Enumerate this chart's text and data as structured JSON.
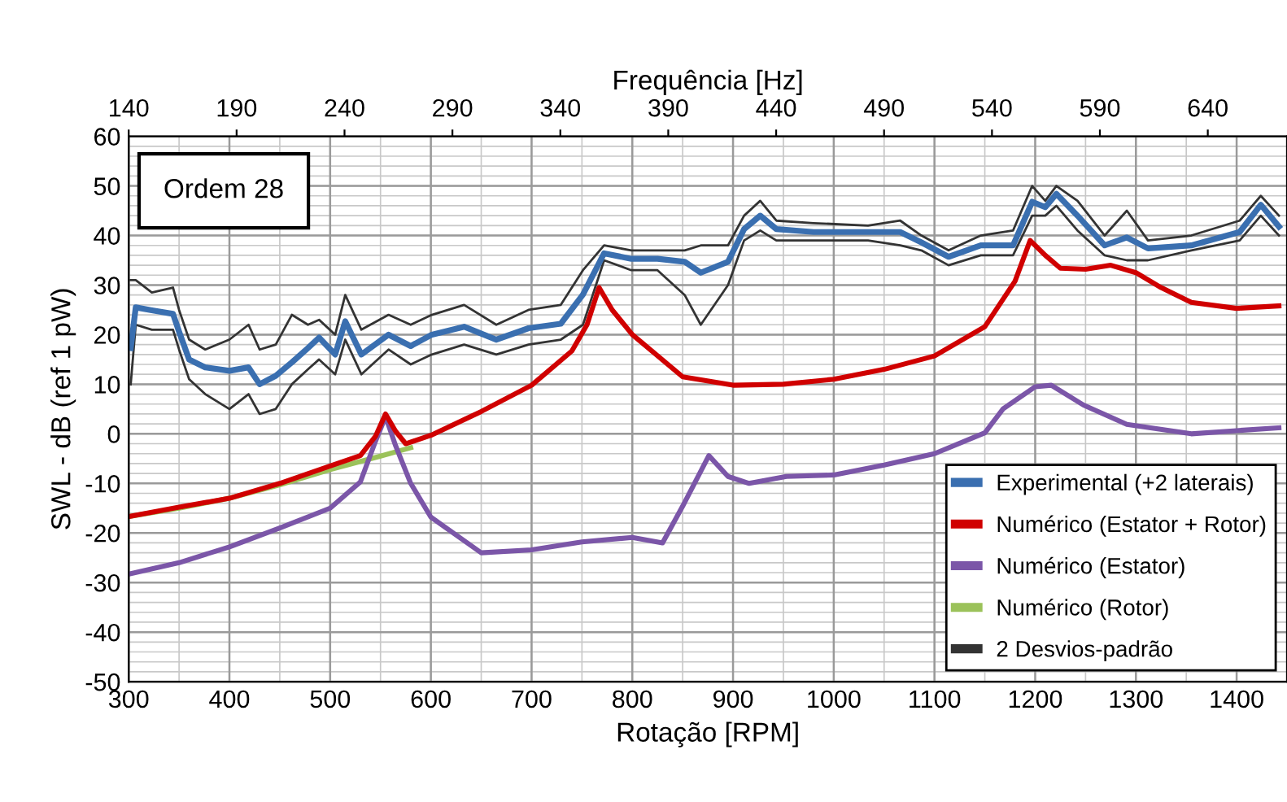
{
  "chart_data": {
    "type": "line",
    "xlabel": "Rotação [RPM]",
    "ylabel": "SWL - dB (ref 1 pW)",
    "x2label": "Frequência [Hz]",
    "xlim": [
      300,
      1450
    ],
    "xticks": [
      300,
      400,
      500,
      600,
      700,
      800,
      900,
      1000,
      1100,
      1200,
      1300,
      1400
    ],
    "x2lim": [
      140,
      676.7
    ],
    "x2ticks": [
      140,
      190,
      240,
      290,
      340,
      390,
      440,
      490,
      540,
      590,
      640
    ],
    "ylim": [
      -50,
      60
    ],
    "yticks": [
      -50,
      -40,
      -30,
      -20,
      -10,
      0,
      10,
      20,
      30,
      40,
      50,
      60
    ],
    "grid": true,
    "legend": "bottom right",
    "marker": "none",
    "line_style": "solid",
    "annotations": [
      "Ordem 28"
    ],
    "series": [
      {
        "name": "Experimental (+2 laterais)",
        "color": "#3a6fb0",
        "x": [
          302,
          307,
          323,
          344,
          350,
          360,
          376,
          400,
          419,
          430,
          446,
          462,
          478,
          489,
          505,
          515,
          531,
          558,
          580,
          601,
          633,
          665,
          697,
          729,
          751,
          772,
          799,
          825,
          852,
          868,
          895,
          911,
          927,
          943,
          980,
          1034,
          1066,
          1087,
          1114,
          1146,
          1178,
          1197,
          1210,
          1221,
          1242,
          1269,
          1291,
          1312,
          1355,
          1403,
          1424,
          1442
        ],
        "values": [
          17.3,
          25.5,
          24.9,
          24.2,
          20.6,
          15,
          13.4,
          12.7,
          13.4,
          10,
          11.7,
          14.4,
          17.3,
          19.4,
          16,
          22.7,
          16,
          20,
          17.7,
          20,
          21.6,
          19,
          21.3,
          22.2,
          28.1,
          36.4,
          35.3,
          35.3,
          34.7,
          32.5,
          34.7,
          41.3,
          44,
          41.3,
          40.7,
          40.7,
          40.7,
          38.6,
          35.7,
          38,
          38,
          46.8,
          45.7,
          48.4,
          44,
          38,
          39.6,
          37.4,
          38,
          40.7,
          46.2,
          41.8
        ]
      },
      {
        "name": "Numérico (Estator + Rotor)",
        "color": "#d00000",
        "x": [
          300,
          350,
          400,
          450,
          500,
          530,
          545,
          555,
          565,
          575,
          600,
          650,
          700,
          740,
          755,
          767,
          780,
          800,
          850,
          900,
          950,
          1000,
          1050,
          1100,
          1150,
          1180,
          1195,
          1210,
          1225,
          1250,
          1275,
          1300,
          1325,
          1355,
          1400,
          1442
        ],
        "values": [
          -16.7,
          -14.8,
          -13,
          -10,
          -6.5,
          -4.4,
          -0.5,
          4,
          0.5,
          -2,
          -0.3,
          4.5,
          9.8,
          16.7,
          22,
          29.5,
          25,
          20,
          11.5,
          9.8,
          10,
          11,
          13,
          15.7,
          21.6,
          30.8,
          39,
          36,
          33.4,
          33.2,
          34,
          32.5,
          29.5,
          26.5,
          25.3,
          25.8
        ]
      },
      {
        "name": "Numérico (Estator)",
        "color": "#7b56a8",
        "x": [
          300,
          350,
          400,
          450,
          500,
          530,
          545,
          555,
          565,
          580,
          600,
          650,
          700,
          750,
          800,
          830,
          850,
          876,
          895,
          916,
          953,
          1000,
          1050,
          1100,
          1150,
          1168,
          1200,
          1216,
          1248,
          1291,
          1355,
          1397,
          1442
        ],
        "values": [
          -28.3,
          -26,
          -22.8,
          -19,
          -15,
          -9.7,
          -1.5,
          3.5,
          -2.4,
          -10,
          -16.8,
          -24,
          -23.4,
          -21.8,
          -20.9,
          -22,
          -14.6,
          -4.4,
          -8.6,
          -10,
          -8.6,
          -8.3,
          -6.3,
          -4,
          0.2,
          5,
          9.5,
          9.8,
          5.8,
          1.9,
          0,
          0.6,
          1.2
        ]
      },
      {
        "name": "Numérico (Rotor)",
        "color": "#9bc25a",
        "x": [
          300,
          350,
          400,
          450,
          500,
          550,
          580
        ],
        "values": [
          -16.7,
          -15,
          -13,
          -10.3,
          -7.2,
          -4.5,
          -2.8
        ]
      },
      {
        "name": "2 Desvios-padrão",
        "color": "#333333",
        "x": [
          302,
          307,
          323,
          344,
          350,
          360,
          376,
          400,
          419,
          430,
          446,
          462,
          478,
          489,
          505,
          515,
          531,
          558,
          580,
          601,
          633,
          665,
          697,
          729,
          751,
          772,
          799,
          825,
          852,
          868,
          895,
          911,
          927,
          943,
          980,
          1034,
          1066,
          1087,
          1114,
          1146,
          1178,
          1197,
          1210,
          1221,
          1242,
          1269,
          1291,
          1312,
          1355,
          1403,
          1424,
          1442
        ],
        "values": [
          31,
          31,
          28.5,
          29.5,
          25,
          19,
          17,
          19,
          22,
          17,
          18,
          24,
          22,
          23,
          20,
          28,
          21,
          24,
          22,
          24,
          26,
          22,
          25,
          26,
          33,
          38,
          37,
          37,
          37,
          38,
          38,
          44,
          47,
          43,
          42.5,
          42,
          43,
          40,
          37,
          40,
          41,
          50,
          47,
          50,
          47,
          40,
          45,
          39,
          40,
          43,
          48,
          44
        ]
      },
      {
        "color": "#333333",
        "x": [
          302,
          307,
          323,
          344,
          350,
          360,
          376,
          400,
          419,
          430,
          446,
          462,
          478,
          489,
          505,
          515,
          531,
          558,
          580,
          601,
          633,
          665,
          697,
          729,
          751,
          772,
          799,
          825,
          852,
          868,
          895,
          911,
          927,
          943,
          980,
          1034,
          1066,
          1087,
          1114,
          1146,
          1178,
          1197,
          1210,
          1221,
          1242,
          1269,
          1291,
          1312,
          1355,
          1403,
          1424,
          1442
        ],
        "values": [
          10,
          22,
          21,
          21,
          17,
          11,
          8,
          5,
          8,
          4,
          5,
          10,
          13,
          15,
          12,
          19,
          12,
          17,
          14,
          16,
          18,
          16,
          18,
          19,
          22,
          35,
          33,
          33,
          28,
          22,
          30,
          39,
          41,
          39,
          39,
          39,
          38,
          37,
          34,
          36,
          36,
          44,
          44,
          46,
          41,
          36,
          35,
          35,
          37,
          39,
          44,
          40
        ]
      }
    ]
  }
}
